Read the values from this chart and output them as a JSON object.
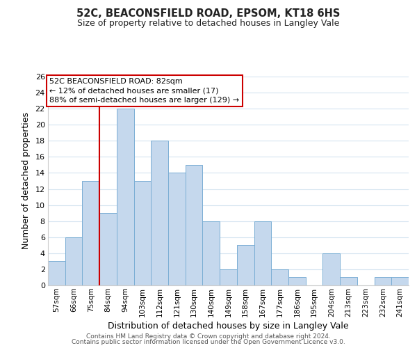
{
  "title": "52C, BEACONSFIELD ROAD, EPSOM, KT18 6HS",
  "subtitle": "Size of property relative to detached houses in Langley Vale",
  "xlabel": "Distribution of detached houses by size in Langley Vale",
  "ylabel": "Number of detached properties",
  "bar_color": "#c5d8ed",
  "bar_edge_color": "#7aaed4",
  "categories": [
    "57sqm",
    "66sqm",
    "75sqm",
    "84sqm",
    "94sqm",
    "103sqm",
    "112sqm",
    "121sqm",
    "130sqm",
    "140sqm",
    "149sqm",
    "158sqm",
    "167sqm",
    "177sqm",
    "186sqm",
    "195sqm",
    "204sqm",
    "213sqm",
    "223sqm",
    "232sqm",
    "241sqm"
  ],
  "values": [
    3,
    6,
    13,
    9,
    22,
    13,
    18,
    14,
    15,
    8,
    2,
    5,
    8,
    2,
    1,
    0,
    4,
    1,
    0,
    1,
    1
  ],
  "ylim": [
    0,
    26
  ],
  "yticks": [
    0,
    2,
    4,
    6,
    8,
    10,
    12,
    14,
    16,
    18,
    20,
    22,
    24,
    26
  ],
  "vline_color": "#cc0000",
  "annotation_text": "52C BEACONSFIELD ROAD: 82sqm\n← 12% of detached houses are smaller (17)\n88% of semi-detached houses are larger (129) →",
  "annotation_box_edgecolor": "#cc0000",
  "annotation_box_facecolor": "#ffffff",
  "footer_line1": "Contains HM Land Registry data © Crown copyright and database right 2024.",
  "footer_line2": "Contains public sector information licensed under the Open Government Licence v3.0.",
  "background_color": "#ffffff",
  "grid_color": "#d5e4f0"
}
